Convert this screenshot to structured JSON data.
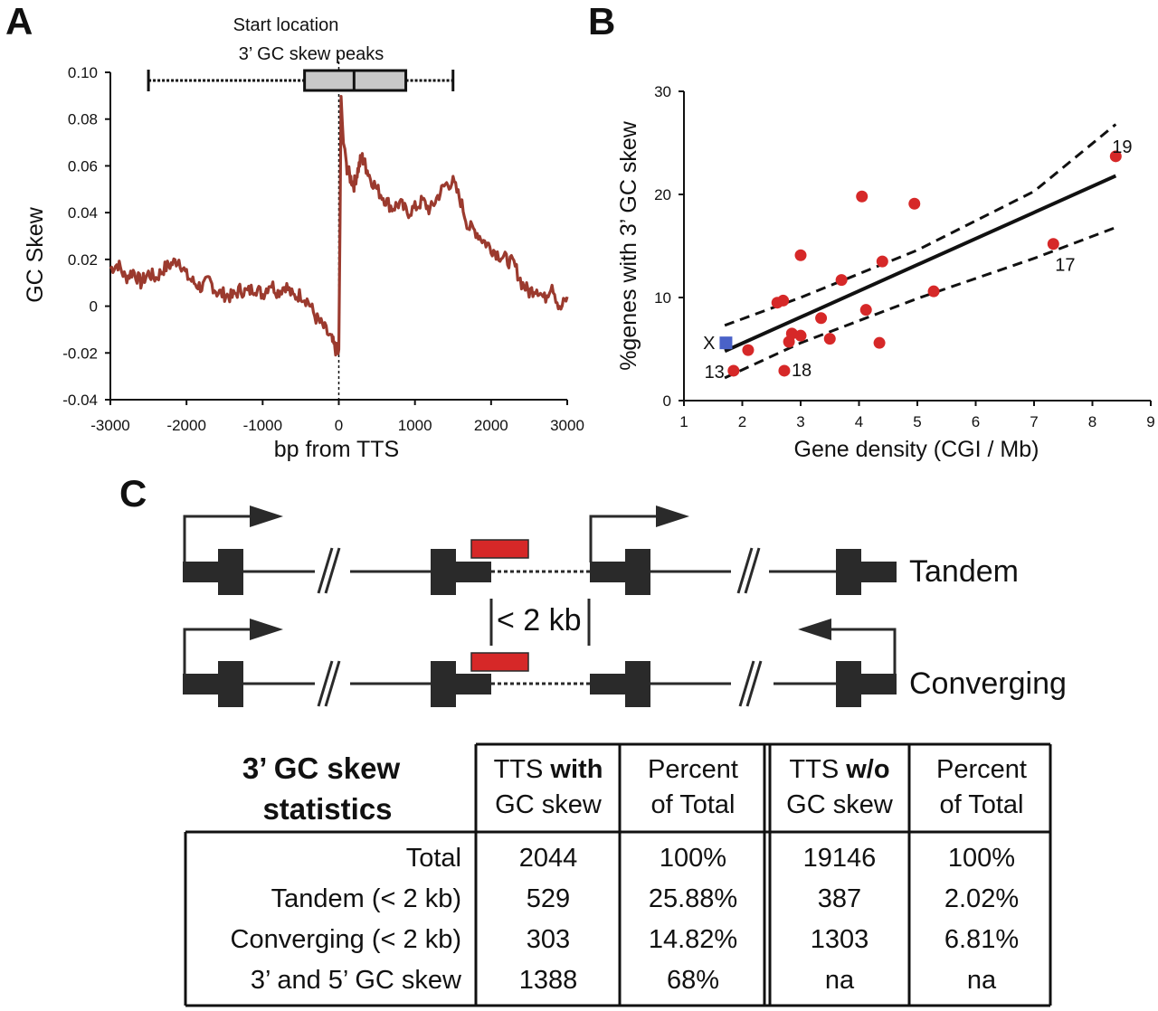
{
  "figure": {
    "panels": [
      "A",
      "B",
      "C"
    ]
  },
  "chart_data": [
    {
      "panel": "A",
      "type": "line",
      "title": "",
      "xlabel": "bp from TTS",
      "ylabel": "GC Skew",
      "xlim": [
        -3000,
        3000
      ],
      "ylim": [
        -0.04,
        0.1
      ],
      "xticks": [
        "-3000",
        "-2000",
        "-1000",
        "0",
        "1000",
        "2000",
        "3000"
      ],
      "yticks": [
        "-0.04",
        "-0.02",
        "0",
        "0.02",
        "0.04",
        "0.06",
        "0.08",
        "0.10"
      ],
      "line_color": "#9b3a2e",
      "boxplot": {
        "label_line1": "Start location",
        "label_line2": "3’ GC skew peaks",
        "whisker_low": -2500,
        "q1": -450,
        "median": 200,
        "q3": 880,
        "whisker_high": 1500,
        "fill": "#c8c8c8"
      },
      "x": [
        -3000,
        -2900,
        -2800,
        -2700,
        -2600,
        -2500,
        -2400,
        -2300,
        -2200,
        -2100,
        -2000,
        -1900,
        -1800,
        -1700,
        -1600,
        -1500,
        -1400,
        -1300,
        -1200,
        -1100,
        -1000,
        -900,
        -800,
        -700,
        -600,
        -500,
        -400,
        -300,
        -200,
        -100,
        -50,
        0,
        30,
        60,
        100,
        150,
        200,
        250,
        300,
        350,
        400,
        500,
        600,
        700,
        800,
        900,
        1000,
        1100,
        1200,
        1300,
        1400,
        1500,
        1600,
        1700,
        1800,
        1900,
        2000,
        2100,
        2200,
        2300,
        2400,
        2500,
        2600,
        2700,
        2800,
        2900,
        3000
      ],
      "y": [
        0.016,
        0.018,
        0.012,
        0.015,
        0.01,
        0.014,
        0.012,
        0.016,
        0.018,
        0.02,
        0.013,
        0.01,
        0.008,
        0.011,
        0.006,
        0.005,
        0.004,
        0.007,
        0.006,
        0.008,
        0.005,
        0.01,
        0.006,
        0.009,
        0.004,
        0.005,
        0.002,
        -0.005,
        -0.009,
        -0.014,
        -0.018,
        -0.02,
        0.088,
        0.07,
        0.06,
        0.055,
        0.052,
        0.058,
        0.064,
        0.06,
        0.056,
        0.05,
        0.046,
        0.042,
        0.044,
        0.04,
        0.042,
        0.045,
        0.041,
        0.047,
        0.052,
        0.053,
        0.045,
        0.034,
        0.032,
        0.028,
        0.025,
        0.022,
        0.02,
        0.018,
        0.01,
        0.006,
        0.008,
        0.003,
        0.01,
        -0.002,
        0.004
      ]
    },
    {
      "panel": "B",
      "type": "scatter",
      "title": "",
      "xlabel": "Gene density (CGI / Mb)",
      "ylabel": "%genes with 3’ GC skew",
      "xlim": [
        1,
        9
      ],
      "ylim": [
        0,
        30
      ],
      "xticks": [
        "1",
        "2",
        "3",
        "4",
        "5",
        "6",
        "7",
        "8",
        "9"
      ],
      "yticks": [
        "0",
        "10",
        "20",
        "30"
      ],
      "point_color": "#d62828",
      "x_chrom_color": "#4a62c8",
      "regression": {
        "x": [
          1.7,
          8.4
        ],
        "y": [
          4.8,
          21.8
        ]
      },
      "ci_upper": {
        "x": [
          1.7,
          3.0,
          5.0,
          7.0,
          8.4
        ],
        "y": [
          7.3,
          10.0,
          14.6,
          20.3,
          26.8
        ]
      },
      "ci_lower": {
        "x": [
          1.7,
          3.0,
          5.0,
          7.0,
          8.4
        ],
        "y": [
          2.2,
          5.6,
          9.9,
          13.8,
          16.8
        ]
      },
      "points": [
        {
          "x": 1.85,
          "y": 2.9,
          "label": "13"
        },
        {
          "x": 2.1,
          "y": 4.9,
          "label": ""
        },
        {
          "x": 2.6,
          "y": 9.5,
          "label": ""
        },
        {
          "x": 2.7,
          "y": 9.7,
          "label": ""
        },
        {
          "x": 2.72,
          "y": 2.9,
          "label": "18"
        },
        {
          "x": 2.8,
          "y": 5.7,
          "label": ""
        },
        {
          "x": 2.85,
          "y": 6.5,
          "label": ""
        },
        {
          "x": 3.0,
          "y": 6.3,
          "label": ""
        },
        {
          "x": 3.0,
          "y": 14.1,
          "label": ""
        },
        {
          "x": 3.35,
          "y": 8.0,
          "label": ""
        },
        {
          "x": 3.5,
          "y": 6.0,
          "label": ""
        },
        {
          "x": 3.7,
          "y": 11.7,
          "label": ""
        },
        {
          "x": 4.05,
          "y": 19.8,
          "label": ""
        },
        {
          "x": 4.12,
          "y": 8.8,
          "label": ""
        },
        {
          "x": 4.35,
          "y": 5.6,
          "label": ""
        },
        {
          "x": 4.4,
          "y": 13.5,
          "label": ""
        },
        {
          "x": 4.95,
          "y": 19.1,
          "label": ""
        },
        {
          "x": 5.28,
          "y": 10.6,
          "label": ""
        },
        {
          "x": 7.33,
          "y": 15.2,
          "label": "17"
        },
        {
          "x": 8.4,
          "y": 23.7,
          "label": "19"
        }
      ],
      "x_chromosome": {
        "x": 1.72,
        "y": 5.6,
        "label": "X"
      }
    }
  ],
  "diagram": {
    "tandem_label": "Tandem",
    "converging_label": "Converging",
    "distance_label": "< 2 kb",
    "skew_color": "#d62828"
  },
  "table": {
    "title_line1": "3’ GC skew",
    "title_line2": "statistics",
    "headers": [
      {
        "line1_plain": "TTS ",
        "line1_bold": "with",
        "line2": "GC skew"
      },
      {
        "line1_plain": "Percent",
        "line1_bold": "",
        "line2": "of Total"
      },
      {
        "line1_plain": "TTS ",
        "line1_bold": "w/o",
        "line2": "GC skew"
      },
      {
        "line1_plain": "Percent",
        "line1_bold": "",
        "line2": "of Total"
      }
    ],
    "rows": [
      {
        "label": "Total",
        "values": [
          "2044",
          "100%",
          "19146",
          "100%"
        ]
      },
      {
        "label": "Tandem (< 2 kb)",
        "values": [
          "529",
          "25.88%",
          "387",
          "2.02%"
        ]
      },
      {
        "label": "Converging (< 2 kb)",
        "values": [
          "303",
          "14.82%",
          "1303",
          "6.81%"
        ]
      },
      {
        "label": "3’ and 5’ GC skew",
        "values": [
          "1388",
          "68%",
          "na",
          "na"
        ]
      }
    ]
  }
}
